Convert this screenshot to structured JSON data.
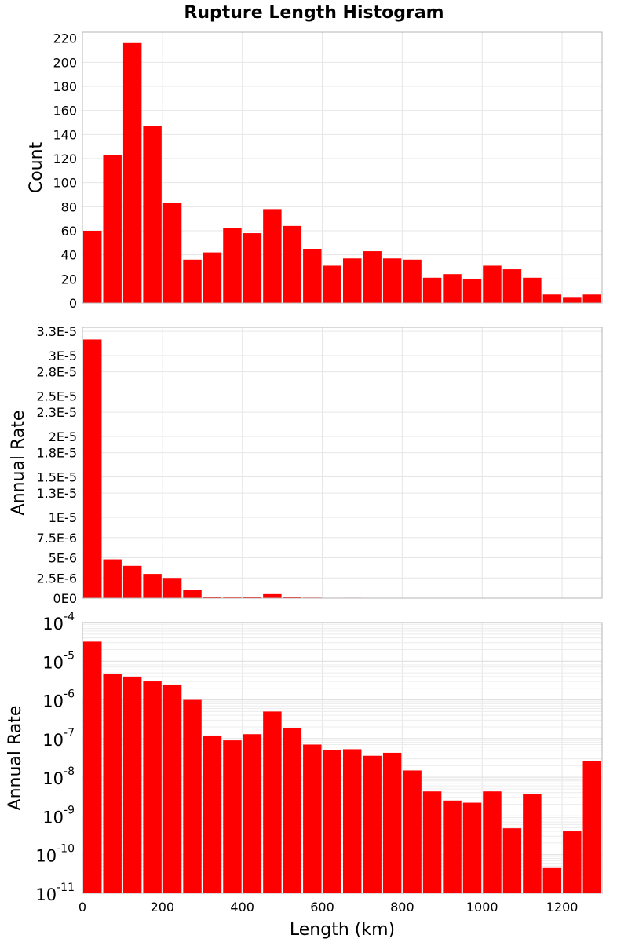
{
  "chart_data": {
    "title": "Rupture Length Histogram",
    "xlabel": "Length (km)",
    "xlim": [
      0,
      1300
    ],
    "xticks": [
      "0",
      "200",
      "400",
      "600",
      "800",
      "1000",
      "1200"
    ],
    "bin_width": 50,
    "bar_color": "#ff0000",
    "bin_centers": [
      25,
      75,
      125,
      175,
      225,
      275,
      325,
      375,
      425,
      475,
      525,
      575,
      625,
      675,
      725,
      775,
      825,
      875,
      925,
      975,
      1025,
      1075,
      1125,
      1175,
      1225,
      1275
    ],
    "panels": [
      {
        "type": "bar",
        "ylabel": "Count",
        "yscale": "linear",
        "ylim": [
          0,
          225
        ],
        "yticks": [
          "0",
          "20",
          "40",
          "60",
          "80",
          "100",
          "120",
          "140",
          "160",
          "180",
          "200",
          "220"
        ],
        "values": [
          60,
          123,
          216,
          147,
          83,
          36,
          42,
          62,
          58,
          78,
          64,
          45,
          31,
          37,
          43,
          37,
          36,
          21,
          24,
          20,
          31,
          28,
          21,
          7,
          5,
          7
        ]
      },
      {
        "type": "bar",
        "ylabel": "Annual Rate",
        "yscale": "linear",
        "ylim": [
          0,
          3.35e-05
        ],
        "yticks": [
          "0E0",
          "2.5E-6",
          "5E-6",
          "7.5E-6",
          "1E-5",
          "1.3E-5",
          "1.5E-5",
          "1.8E-5",
          "2E-5",
          "2.3E-5",
          "2.5E-5",
          "2.8E-5",
          "3E-5",
          "3.3E-5"
        ],
        "values": [
          3.2e-05,
          4.8e-06,
          4e-06,
          3e-06,
          2.5e-06,
          1e-06,
          1.2e-07,
          9e-08,
          1.3e-07,
          5e-07,
          1.9e-07,
          7e-08,
          5e-08,
          5.3e-08,
          3.6e-08,
          4.3e-08,
          1.5e-08,
          4.3e-09,
          2.5e-09,
          2.2e-09,
          4.3e-09,
          4.8e-10,
          3.6e-09,
          4.5e-11,
          4e-10,
          2.6e-08
        ]
      },
      {
        "type": "bar",
        "ylabel": "Annual Rate",
        "yscale": "log",
        "ylim": [
          1e-11,
          0.0001
        ],
        "yticks": [
          {
            "base": "10",
            "exp": "-11"
          },
          {
            "base": "10",
            "exp": "-10"
          },
          {
            "base": "10",
            "exp": "-9"
          },
          {
            "base": "10",
            "exp": "-8"
          },
          {
            "base": "10",
            "exp": "-7"
          },
          {
            "base": "10",
            "exp": "-6"
          },
          {
            "base": "10",
            "exp": "-5"
          },
          {
            "base": "10",
            "exp": "-4"
          }
        ],
        "values": [
          3.2e-05,
          4.8e-06,
          4e-06,
          3e-06,
          2.5e-06,
          1e-06,
          1.2e-07,
          9e-08,
          1.3e-07,
          5e-07,
          1.9e-07,
          7e-08,
          5e-08,
          5.3e-08,
          3.6e-08,
          4.3e-08,
          1.5e-08,
          4.3e-09,
          2.5e-09,
          2.2e-09,
          4.3e-09,
          4.8e-10,
          3.6e-09,
          4.5e-11,
          4e-10,
          2.6e-08
        ]
      }
    ]
  }
}
